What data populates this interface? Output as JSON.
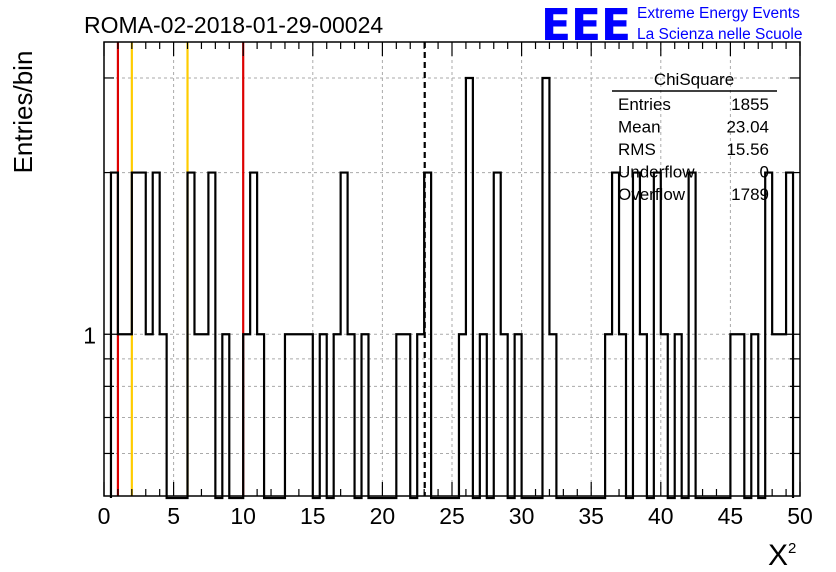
{
  "title": "ROMA-02-2018-01-29-00024",
  "logo": {
    "mark": "EEE",
    "line1": "Extreme Energy Events",
    "line2": "La Scienza nelle Scuole",
    "color": "#0000ff"
  },
  "stats": {
    "name": "ChiSquare",
    "rows": [
      {
        "label": "Entries",
        "value": "1855"
      },
      {
        "label": "Mean",
        "value": "23.04"
      },
      {
        "label": "RMS",
        "value": "15.56"
      },
      {
        "label": "Underflow",
        "value": "0"
      },
      {
        "label": "Overflow",
        "value": "1789"
      }
    ]
  },
  "chart_data": {
    "type": "bar",
    "histogram": "step",
    "title": "ROMA-02-2018-01-29-00024",
    "xlabel": "X",
    "xlabel_superscript": "2",
    "ylabel": "Entries/bin",
    "xlim": [
      0,
      50
    ],
    "ylim": [
      0.5,
      3.5
    ],
    "y_scale": "log",
    "bin_width": 0.5,
    "x_ticks": [
      0,
      5,
      10,
      15,
      20,
      25,
      30,
      35,
      40,
      45,
      50
    ],
    "y_ticks": [
      1
    ],
    "grid": true,
    "legend_placement": "top-right",
    "bins": [
      [
        0.5,
        2
      ],
      [
        1.0,
        1
      ],
      [
        2.0,
        2
      ],
      [
        3.0,
        1
      ],
      [
        3.5,
        2
      ],
      [
        4.0,
        1
      ],
      [
        4.5,
        0
      ],
      [
        5.0,
        0
      ],
      [
        6.0,
        2
      ],
      [
        6.5,
        1
      ],
      [
        7.5,
        2
      ],
      [
        8.0,
        0
      ],
      [
        8.5,
        1
      ],
      [
        9.0,
        0
      ],
      [
        10.0,
        1
      ],
      [
        10.5,
        2
      ],
      [
        11.0,
        1
      ],
      [
        11.5,
        0
      ],
      [
        13.0,
        1
      ],
      [
        15.0,
        0
      ],
      [
        15.5,
        1
      ],
      [
        16.0,
        0
      ],
      [
        16.5,
        1
      ],
      [
        17.0,
        2
      ],
      [
        17.5,
        1
      ],
      [
        18.0,
        0
      ],
      [
        18.5,
        1
      ],
      [
        19.0,
        0
      ],
      [
        21.0,
        1
      ],
      [
        22.0,
        0
      ],
      [
        22.5,
        1
      ],
      [
        23.0,
        2
      ],
      [
        23.5,
        0
      ],
      [
        25.5,
        1
      ],
      [
        26.0,
        3
      ],
      [
        26.5,
        0
      ],
      [
        27.0,
        1
      ],
      [
        27.5,
        0
      ],
      [
        28.0,
        2
      ],
      [
        28.5,
        1
      ],
      [
        29.0,
        0
      ],
      [
        29.5,
        1
      ],
      [
        30.0,
        0
      ],
      [
        31.5,
        3
      ],
      [
        32.0,
        1
      ],
      [
        32.5,
        0
      ],
      [
        36.0,
        1
      ],
      [
        36.5,
        2
      ],
      [
        37.0,
        1
      ],
      [
        37.5,
        0
      ],
      [
        38.0,
        2
      ],
      [
        38.5,
        1
      ],
      [
        39.0,
        0
      ],
      [
        39.5,
        2
      ],
      [
        40.0,
        1
      ],
      [
        40.5,
        0
      ],
      [
        41.0,
        1
      ],
      [
        41.5,
        0
      ],
      [
        42.0,
        2
      ],
      [
        42.5,
        0
      ],
      [
        45.0,
        1
      ],
      [
        46.0,
        0
      ],
      [
        46.5,
        1
      ],
      [
        47.0,
        0
      ],
      [
        47.5,
        2
      ],
      [
        48.0,
        1
      ],
      [
        49.0,
        2
      ],
      [
        49.5,
        0
      ]
    ],
    "markers": [
      {
        "x": 1.0,
        "color": "#dd0000",
        "style": "solid"
      },
      {
        "x": 2.0,
        "color": "#ffcc00",
        "style": "solid"
      },
      {
        "x": 6.0,
        "color": "#ffcc00",
        "style": "solid"
      },
      {
        "x": 10.0,
        "color": "#dd0000",
        "style": "solid"
      },
      {
        "x": 23.04,
        "color": "#000000",
        "style": "dashed"
      }
    ]
  }
}
